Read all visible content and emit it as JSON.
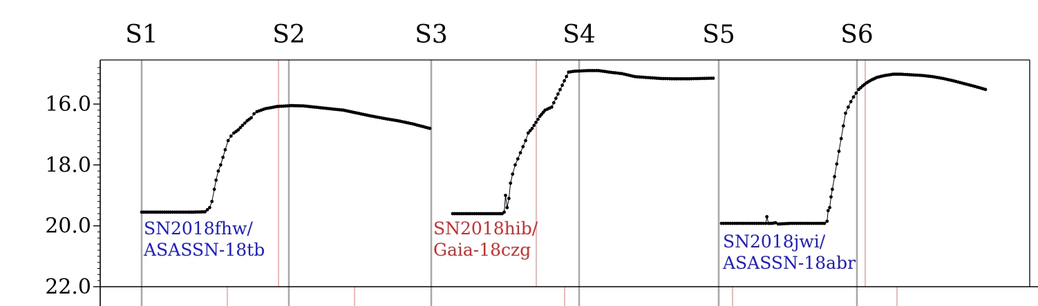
{
  "chart_data": {
    "type": "scatter",
    "y_inverted": true,
    "ylim": [
      22.0,
      14.7
    ],
    "yticks": [
      16.0,
      18.0,
      20.0,
      22.0
    ],
    "ytick_labels": [
      "16.0",
      "18.0",
      "20.0",
      "22.0"
    ],
    "sector_labels": [
      "S1",
      "S2",
      "S3",
      "S4",
      "S5",
      "S6"
    ],
    "colors": {
      "points": "#000000",
      "sector_line": "#a9a9a9",
      "marker_line": "#f2b8b8",
      "blue": "#1a1adb",
      "red": "#d42a2a"
    },
    "annotations": [
      {
        "lines": [
          "SN2018fhw/",
          "ASASSN-18tb"
        ],
        "color": "blue"
      },
      {
        "lines": [
          "SN2018hib/",
          "Gaia-18czg"
        ],
        "color": "red"
      },
      {
        "lines": [
          "SN2018jwi/",
          "ASASSN-18abr"
        ],
        "color": "blue"
      }
    ],
    "series": [
      {
        "sectors": "S1–S3",
        "points": [
          [
            0.0,
            19.55
          ],
          [
            0.05,
            19.55
          ],
          [
            0.1,
            19.55
          ],
          [
            0.16,
            19.55
          ],
          [
            0.18,
            19.55
          ],
          [
            0.22,
            19.54
          ],
          [
            0.236,
            19.4
          ],
          [
            0.244,
            19.2
          ],
          [
            0.252,
            18.8
          ],
          [
            0.258,
            18.5
          ],
          [
            0.266,
            18.2
          ],
          [
            0.274,
            18.0
          ],
          [
            0.29,
            17.5
          ],
          [
            0.3,
            17.2
          ],
          [
            0.31,
            17.05
          ],
          [
            0.32,
            16.95
          ],
          [
            0.335,
            16.85
          ],
          [
            0.35,
            16.7
          ],
          [
            0.366,
            16.55
          ],
          [
            0.38,
            16.45
          ],
          [
            0.39,
            16.32
          ],
          [
            0.4,
            16.25
          ],
          [
            0.43,
            16.15
          ],
          [
            0.47,
            16.08
          ],
          [
            0.52,
            16.05
          ],
          [
            0.56,
            16.06
          ],
          [
            0.6,
            16.1
          ],
          [
            0.65,
            16.15
          ],
          [
            0.7,
            16.2
          ],
          [
            0.74,
            16.28
          ],
          [
            0.79,
            16.38
          ],
          [
            0.84,
            16.47
          ],
          [
            0.89,
            16.55
          ],
          [
            0.94,
            16.65
          ],
          [
            1.0,
            16.8
          ]
        ]
      },
      {
        "sectors": "S3–S5",
        "points": [
          [
            0.0,
            19.6
          ],
          [
            0.05,
            19.6
          ],
          [
            0.1,
            19.6
          ],
          [
            0.14,
            19.6
          ],
          [
            0.17,
            19.6
          ],
          [
            0.19,
            19.6
          ],
          [
            0.198,
            19.55
          ],
          [
            0.203,
            19.0
          ],
          [
            0.209,
            19.4
          ],
          [
            0.216,
            19.1
          ],
          [
            0.222,
            18.6
          ],
          [
            0.23,
            18.3
          ],
          [
            0.24,
            18.0
          ],
          [
            0.25,
            17.8
          ],
          [
            0.26,
            17.6
          ],
          [
            0.27,
            17.4
          ],
          [
            0.28,
            17.2
          ],
          [
            0.29,
            16.95
          ],
          [
            0.305,
            16.8
          ],
          [
            0.32,
            16.6
          ],
          [
            0.335,
            16.4
          ],
          [
            0.355,
            16.2
          ],
          [
            0.38,
            16.1
          ],
          [
            0.445,
            14.95
          ],
          [
            0.47,
            14.92
          ],
          [
            0.52,
            14.9
          ],
          [
            0.56,
            14.9
          ],
          [
            0.6,
            14.95
          ],
          [
            0.65,
            15.0
          ],
          [
            0.7,
            15.1
          ],
          [
            0.75,
            15.13
          ],
          [
            0.8,
            15.16
          ],
          [
            0.85,
            15.17
          ],
          [
            0.9,
            15.17
          ],
          [
            0.95,
            15.16
          ],
          [
            1.0,
            15.15
          ]
        ]
      },
      {
        "sectors": "S5–S6",
        "points": [
          [
            0.0,
            19.92
          ],
          [
            0.05,
            19.92
          ],
          [
            0.1,
            19.92
          ],
          [
            0.15,
            19.92
          ],
          [
            0.168,
            19.92
          ],
          [
            0.172,
            19.7
          ],
          [
            0.178,
            19.92
          ],
          [
            0.19,
            19.92
          ],
          [
            0.205,
            19.9
          ],
          [
            0.215,
            19.94
          ],
          [
            0.26,
            19.92
          ],
          [
            0.3,
            19.92
          ],
          [
            0.35,
            19.92
          ],
          [
            0.39,
            19.92
          ],
          [
            0.4,
            19.85
          ],
          [
            0.404,
            19.5
          ],
          [
            0.41,
            19.4
          ],
          [
            0.415,
            19.05
          ],
          [
            0.42,
            18.8
          ],
          [
            0.47,
            16.3
          ],
          [
            0.48,
            16.1
          ],
          [
            0.49,
            15.92
          ],
          [
            0.5,
            15.77
          ],
          [
            0.51,
            15.64
          ],
          [
            0.52,
            15.52
          ],
          [
            0.535,
            15.4
          ],
          [
            0.55,
            15.3
          ],
          [
            0.57,
            15.2
          ],
          [
            0.59,
            15.12
          ],
          [
            0.62,
            15.06
          ],
          [
            0.65,
            15.02
          ],
          [
            0.68,
            15.02
          ],
          [
            0.72,
            15.04
          ],
          [
            0.76,
            15.06
          ],
          [
            0.8,
            15.1
          ],
          [
            0.84,
            15.16
          ],
          [
            0.88,
            15.24
          ],
          [
            0.92,
            15.33
          ],
          [
            0.96,
            15.42
          ],
          [
            1.0,
            15.52
          ]
        ]
      }
    ]
  }
}
